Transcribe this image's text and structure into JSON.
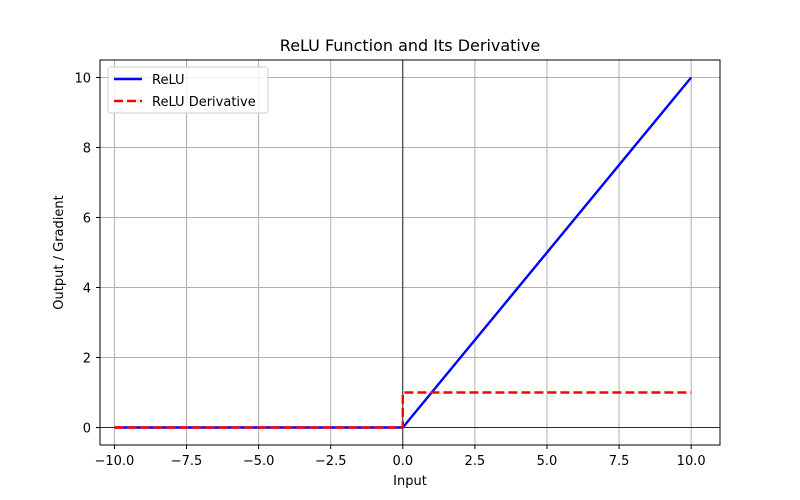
{
  "chart_data": {
    "type": "line",
    "title": "ReLU Function and Its Derivative",
    "xlabel": "Input",
    "ylabel": "Output / Gradient",
    "xlim": [
      -10.5,
      11.0
    ],
    "ylim": [
      -0.5,
      10.5
    ],
    "x_ticks": [
      -10.0,
      -7.5,
      -5.0,
      -2.5,
      0.0,
      2.5,
      5.0,
      7.5,
      10.0
    ],
    "x_tick_labels": [
      "−10.0",
      "−7.5",
      "−5.0",
      "−2.5",
      "0.0",
      "2.5",
      "5.0",
      "7.5",
      "10.0"
    ],
    "y_ticks": [
      0,
      2,
      4,
      6,
      8,
      10
    ],
    "y_tick_labels": [
      "0",
      "2",
      "4",
      "6",
      "8",
      "10"
    ],
    "grid": true,
    "reference_lines": {
      "x": 0,
      "y": 0,
      "color": "#000000"
    },
    "legend": {
      "position": "top-left"
    },
    "series": [
      {
        "name": "ReLU",
        "color": "#0000ff",
        "style": "solid",
        "x": [
          -10,
          0,
          10
        ],
        "y": [
          0,
          0,
          10
        ]
      },
      {
        "name": "ReLU Derivative",
        "color": "#ff0000",
        "style": "dashed",
        "x": [
          -10,
          0,
          0,
          10
        ],
        "y": [
          0,
          0,
          1,
          1
        ]
      }
    ]
  }
}
